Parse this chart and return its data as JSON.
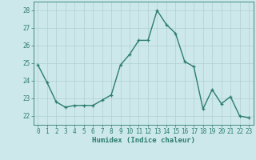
{
  "x": [
    0,
    1,
    2,
    3,
    4,
    5,
    6,
    7,
    8,
    9,
    10,
    11,
    12,
    13,
    14,
    15,
    16,
    17,
    18,
    19,
    20,
    21,
    22,
    23
  ],
  "y": [
    24.9,
    23.9,
    22.8,
    22.5,
    22.6,
    22.6,
    22.6,
    22.9,
    23.2,
    24.9,
    25.5,
    26.3,
    26.3,
    28.0,
    27.2,
    26.7,
    25.1,
    24.8,
    22.4,
    23.5,
    22.7,
    23.1,
    22.0,
    21.9
  ],
  "line_color": "#2d7d6e",
  "marker": "+",
  "marker_size": 3,
  "line_width": 1.0,
  "bg_color": "#cce8ea",
  "grid_color": "#b0cfd4",
  "xlabel": "Humidex (Indice chaleur)",
  "xlim": [
    -0.5,
    23.5
  ],
  "ylim": [
    21.5,
    28.5
  ],
  "yticks": [
    22,
    23,
    24,
    25,
    26,
    27,
    28
  ],
  "xticks": [
    0,
    1,
    2,
    3,
    4,
    5,
    6,
    7,
    8,
    9,
    10,
    11,
    12,
    13,
    14,
    15,
    16,
    17,
    18,
    19,
    20,
    21,
    22,
    23
  ],
  "tick_fontsize": 5.5,
  "xlabel_fontsize": 6.5,
  "tick_color": "#2d7d6e",
  "spine_color": "#2d7d6e"
}
